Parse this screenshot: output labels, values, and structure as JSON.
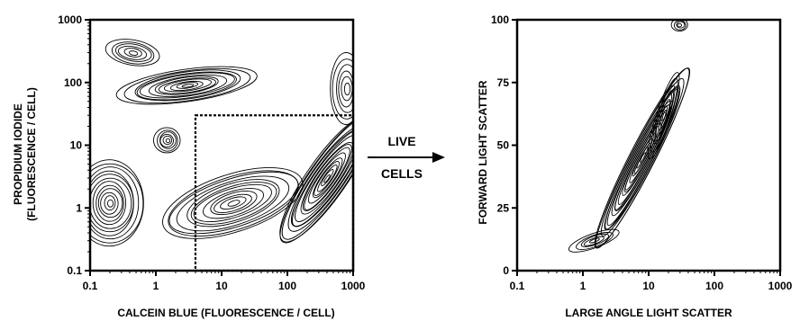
{
  "chart_data": [
    {
      "type": "contour",
      "xlabel": "CALCEIN BLUE  (FLUORESCENCE / CELL)",
      "ylabel_line1": "PROPIDIUM IODIDE",
      "ylabel_line2": "(FLUORESCENCE / CELL)",
      "xscale": "log",
      "yscale": "log",
      "xlim": [
        0.1,
        1000
      ],
      "ylim": [
        0.1,
        1000
      ],
      "xticks": [
        {
          "v": 0.1,
          "label": "0.1"
        },
        {
          "v": 1,
          "label": "1"
        },
        {
          "v": 10,
          "label": "10"
        },
        {
          "v": 100,
          "label": "100"
        },
        {
          "v": 1000,
          "label": "1000"
        }
      ],
      "yticks": [
        {
          "v": 0.1,
          "label": "0.1"
        },
        {
          "v": 1,
          "label": "1"
        },
        {
          "v": 10,
          "label": "10"
        },
        {
          "v": 100,
          "label": "100"
        },
        {
          "v": 1000,
          "label": "1000"
        }
      ],
      "gate": {
        "x": [
          4,
          1000
        ],
        "y": [
          0.1,
          30
        ]
      },
      "populations": [
        {
          "x": 0.2,
          "y": 1.2,
          "levels": 12
        },
        {
          "x": 3,
          "y": 90,
          "levels": 12
        },
        {
          "x": 1.5,
          "y": 12,
          "levels": 6
        },
        {
          "x": 0.45,
          "y": 300,
          "levels": 6
        },
        {
          "x": 15,
          "y": 1.2,
          "levels": 12
        },
        {
          "x": 400,
          "y": 3,
          "levels": 16
        },
        {
          "x": 800,
          "y": 80,
          "levels": 6
        }
      ]
    },
    {
      "type": "contour",
      "xlabel": "LARGE ANGLE LIGHT SCATTER",
      "ylabel": "FORWARD LIGHT SCATTER",
      "xscale": "log",
      "yscale": "linear",
      "xlim": [
        0.1,
        1000
      ],
      "ylim": [
        0,
        100
      ],
      "xticks": [
        {
          "v": 0.1,
          "label": "0.1"
        },
        {
          "v": 1,
          "label": "1"
        },
        {
          "v": 10,
          "label": "10"
        },
        {
          "v": 100,
          "label": "100"
        },
        {
          "v": 1000,
          "label": "1000"
        }
      ],
      "yticks": [
        {
          "v": 0,
          "label": "0"
        },
        {
          "v": 25,
          "label": "25"
        },
        {
          "v": 50,
          "label": "50"
        },
        {
          "v": 75,
          "label": "75"
        },
        {
          "v": 100,
          "label": "100"
        }
      ],
      "populations": [
        {
          "x": 8,
          "y": 45,
          "levels": 18
        },
        {
          "x": 17,
          "y": 62,
          "levels": 8
        },
        {
          "x": 1.5,
          "y": 12,
          "levels": 5
        },
        {
          "x": 30,
          "y": 98,
          "levels": 4
        }
      ]
    }
  ],
  "arrow": {
    "top_label": "LIVE",
    "bottom_label": "CELLS"
  }
}
